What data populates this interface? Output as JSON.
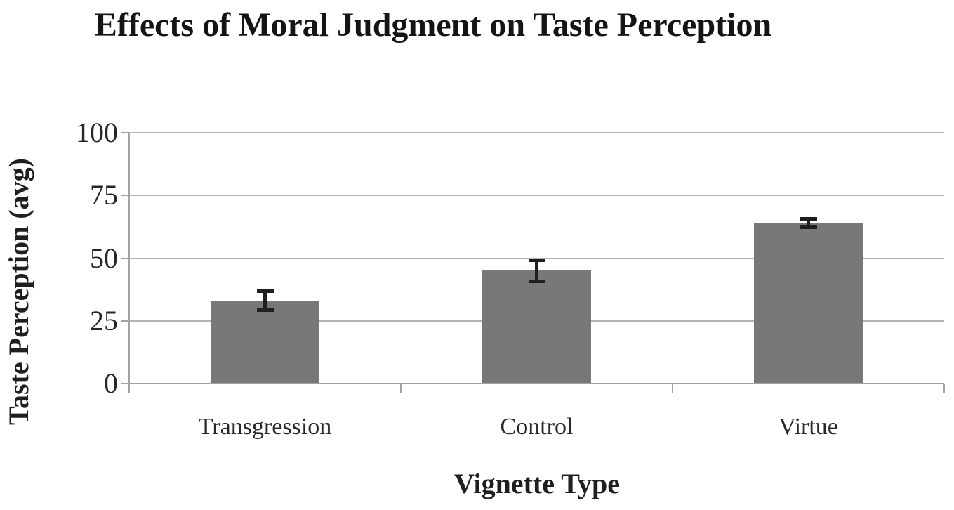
{
  "chart_data": {
    "type": "bar",
    "title": "Effects of Moral Judgment on Taste Perception",
    "xlabel": "Vignette Type",
    "ylabel": "Taste Perception (avg)",
    "categories": [
      "Transgression",
      "Control",
      "Virtue"
    ],
    "values": [
      33,
      45,
      64
    ],
    "errors": [
      4.5,
      5,
      2.5
    ],
    "ylim": [
      0,
      100
    ],
    "yticks": [
      0,
      25,
      50,
      75,
      100
    ],
    "grid": true,
    "legend": false,
    "colors": {
      "bar": "#787878",
      "error_bar": "#1f1f1f",
      "gridline": "#b3b3b3",
      "axis": "#a3a3a3",
      "text": "#262626",
      "title_text": "#141414"
    }
  }
}
